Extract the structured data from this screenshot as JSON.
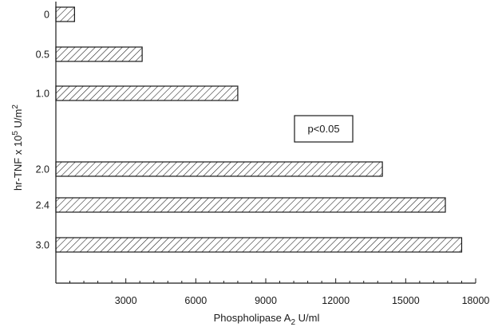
{
  "chart_data": {
    "type": "bar",
    "orientation": "horizontal",
    "categories": [
      "0",
      "0.5",
      "1.0",
      "2.0",
      "2.4",
      "3.0"
    ],
    "values": [
      800,
      3700,
      7800,
      14000,
      16700,
      17400
    ],
    "title": "",
    "xlabel": "Phospholipase A2 U/ml",
    "ylabel": "hr-TNF x 10^5 U/m^2",
    "xlim": [
      0,
      18000
    ],
    "xticks": [
      3000,
      6000,
      9000,
      12000,
      15000,
      18000
    ],
    "grid": false,
    "bar_fill": "hatched",
    "annotation": "p<0.05",
    "colors": {
      "ink": "#1a1a1a",
      "background": "#ffffff"
    }
  }
}
